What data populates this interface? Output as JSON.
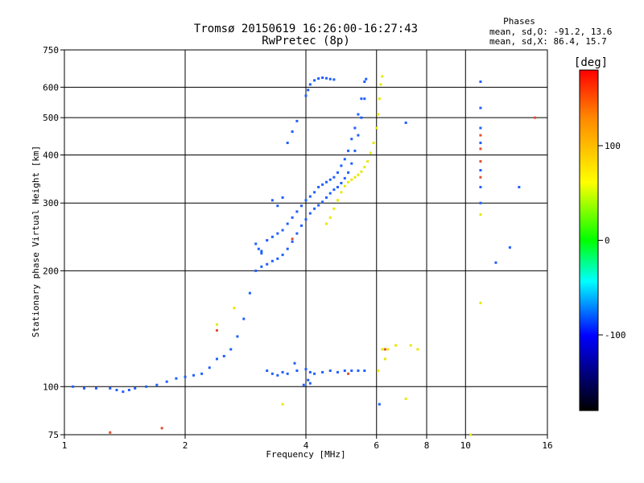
{
  "header": {
    "title_line1": "Tromsø 20150619 16:26:00-16:27:43",
    "title_line2": "RwPretec (8p)"
  },
  "phases_box": {
    "heading": "Phases",
    "o_line": "mean, sd,O: -91.2, 13.6",
    "x_line": "mean, sd,X: 86.4, 15.7"
  },
  "chart_data": {
    "type": "scatter",
    "xlabel": "Frequency [MHz]",
    "ylabel": "Stationary phase Virtual Height [km]",
    "x_scale": "log",
    "y_scale": "log",
    "xlim": [
      1,
      16
    ],
    "ylim": [
      75,
      750
    ],
    "x_ticks": [
      1,
      2,
      4,
      6,
      8,
      10,
      16
    ],
    "y_ticks": [
      75,
      100,
      200,
      300,
      400,
      500,
      600,
      750
    ],
    "grid": true,
    "colorbar": {
      "label": "[deg]",
      "range": [
        -180,
        180
      ],
      "ticks": [
        100,
        0,
        -100
      ],
      "colors": [
        "#ff0000",
        "#ff8800",
        "#ffff00",
        "#00ff00",
        "#00ffff",
        "#0000ff",
        "#000000"
      ]
    },
    "series": [
      {
        "mode": "O",
        "color": "#1f5fff",
        "points": [
          [
            1.05,
            100
          ],
          [
            1.12,
            99
          ],
          [
            1.2,
            99
          ],
          [
            1.3,
            99
          ],
          [
            1.35,
            98
          ],
          [
            1.4,
            97
          ],
          [
            1.45,
            98
          ],
          [
            1.5,
            99
          ],
          [
            1.6,
            100
          ],
          [
            1.7,
            101
          ],
          [
            1.8,
            103
          ],
          [
            1.9,
            105
          ],
          [
            2.0,
            106
          ],
          [
            2.1,
            107
          ],
          [
            2.2,
            108
          ],
          [
            2.3,
            112
          ],
          [
            2.4,
            118
          ],
          [
            2.5,
            120
          ],
          [
            2.6,
            125
          ],
          [
            2.7,
            135
          ],
          [
            2.8,
            150
          ],
          [
            2.9,
            175
          ],
          [
            3.0,
            200
          ],
          [
            3.1,
            225
          ],
          [
            3.2,
            240
          ],
          [
            3.3,
            245
          ],
          [
            3.4,
            250
          ],
          [
            3.5,
            255
          ],
          [
            3.6,
            265
          ],
          [
            3.7,
            275
          ],
          [
            3.8,
            285
          ],
          [
            3.9,
            295
          ],
          [
            4.0,
            305
          ],
          [
            4.1,
            312
          ],
          [
            4.2,
            320
          ],
          [
            4.3,
            330
          ],
          [
            4.4,
            335
          ],
          [
            4.5,
            340
          ],
          [
            4.6,
            345
          ],
          [
            4.7,
            350
          ],
          [
            4.8,
            360
          ],
          [
            4.9,
            375
          ],
          [
            5.0,
            390
          ],
          [
            5.1,
            410
          ],
          [
            5.2,
            440
          ],
          [
            5.3,
            470
          ],
          [
            5.4,
            510
          ],
          [
            5.5,
            560
          ],
          [
            5.6,
            620
          ],
          [
            5.65,
            630
          ],
          [
            3.1,
            205
          ],
          [
            3.2,
            208
          ],
          [
            3.3,
            212
          ],
          [
            3.4,
            215
          ],
          [
            3.5,
            220
          ],
          [
            3.6,
            228
          ],
          [
            3.7,
            238
          ],
          [
            3.8,
            250
          ],
          [
            3.9,
            262
          ],
          [
            4.0,
            272
          ],
          [
            4.1,
            282
          ],
          [
            4.2,
            290
          ],
          [
            4.3,
            296
          ],
          [
            4.4,
            302
          ],
          [
            4.5,
            310
          ],
          [
            4.6,
            318
          ],
          [
            4.7,
            325
          ],
          [
            4.8,
            330
          ],
          [
            4.9,
            338
          ],
          [
            5.0,
            348
          ],
          [
            5.1,
            360
          ],
          [
            5.2,
            380
          ],
          [
            5.3,
            410
          ],
          [
            5.4,
            450
          ],
          [
            5.5,
            500
          ],
          [
            5.6,
            560
          ],
          [
            3.0,
            235
          ],
          [
            3.05,
            228
          ],
          [
            3.1,
            222
          ],
          [
            3.3,
            305
          ],
          [
            3.4,
            295
          ],
          [
            3.5,
            310
          ],
          [
            3.6,
            430
          ],
          [
            3.7,
            460
          ],
          [
            3.8,
            490
          ],
          [
            4.0,
            570
          ],
          [
            4.05,
            590
          ],
          [
            4.1,
            610
          ],
          [
            4.2,
            625
          ],
          [
            4.3,
            632
          ],
          [
            4.4,
            635
          ],
          [
            4.5,
            633
          ],
          [
            4.6,
            630
          ],
          [
            4.7,
            628
          ],
          [
            3.3,
            108
          ],
          [
            3.5,
            109
          ],
          [
            3.6,
            108
          ],
          [
            3.8,
            110
          ],
          [
            4.0,
            111
          ],
          [
            4.1,
            109
          ],
          [
            4.2,
            108
          ],
          [
            4.4,
            109
          ],
          [
            4.6,
            110
          ],
          [
            4.8,
            109
          ],
          [
            5.0,
            110
          ],
          [
            5.2,
            110
          ],
          [
            5.4,
            110
          ],
          [
            5.6,
            110
          ],
          [
            3.2,
            110
          ],
          [
            3.4,
            107
          ],
          [
            4.05,
            104
          ],
          [
            3.95,
            101
          ],
          [
            4.1,
            102
          ],
          [
            3.75,
            115
          ],
          [
            10.9,
            620
          ],
          [
            10.9,
            530
          ],
          [
            10.9,
            470
          ],
          [
            10.9,
            430
          ],
          [
            10.9,
            365
          ],
          [
            10.9,
            330
          ],
          [
            10.9,
            300
          ],
          [
            12.9,
            230
          ],
          [
            13.6,
            330
          ],
          [
            7.1,
            485
          ],
          [
            6.1,
            90
          ],
          [
            11.9,
            210
          ]
        ]
      },
      {
        "mode": "X",
        "color": "#e8e800",
        "points": [
          [
            4.5,
            265
          ],
          [
            4.6,
            275
          ],
          [
            4.7,
            290
          ],
          [
            4.8,
            305
          ],
          [
            4.9,
            320
          ],
          [
            5.0,
            332
          ],
          [
            5.1,
            340
          ],
          [
            5.2,
            345
          ],
          [
            5.3,
            350
          ],
          [
            5.4,
            355
          ],
          [
            5.5,
            362
          ],
          [
            5.6,
            372
          ],
          [
            5.7,
            385
          ],
          [
            5.8,
            405
          ],
          [
            5.9,
            430
          ],
          [
            6.0,
            470
          ],
          [
            6.05,
            510
          ],
          [
            6.1,
            560
          ],
          [
            6.15,
            610
          ],
          [
            6.2,
            640
          ],
          [
            6.2,
            125
          ],
          [
            6.4,
            125
          ],
          [
            6.7,
            128
          ],
          [
            7.3,
            128
          ],
          [
            7.6,
            125
          ],
          [
            6.3,
            118
          ],
          [
            6.05,
            110
          ],
          [
            2.65,
            160
          ],
          [
            2.4,
            145
          ],
          [
            3.5,
            90
          ],
          [
            7.1,
            93
          ],
          [
            10.9,
            280
          ],
          [
            10.9,
            165
          ],
          [
            10.3,
            75
          ]
        ]
      },
      {
        "mode": "other",
        "color": "#e05030",
        "points": [
          [
            10.9,
            450
          ],
          [
            10.9,
            415
          ],
          [
            10.9,
            385
          ],
          [
            10.9,
            350
          ],
          [
            6.3,
            125
          ],
          [
            2.4,
            140
          ],
          [
            1.75,
            78
          ],
          [
            1.3,
            76
          ],
          [
            5.1,
            108
          ],
          [
            3.7,
            242
          ],
          [
            14.9,
            500
          ]
        ]
      }
    ]
  }
}
